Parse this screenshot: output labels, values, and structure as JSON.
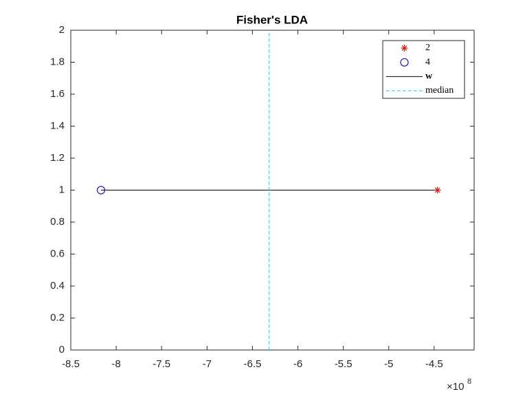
{
  "chart_data": {
    "type": "scatter",
    "title": "Fisher's LDA",
    "xlim": [
      -8.5,
      -4.06
    ],
    "ylim": [
      0,
      2
    ],
    "xticks": [
      -8.5,
      -8,
      -7.5,
      -7,
      -6.5,
      -6,
      -5.5,
      -5,
      -4.5
    ],
    "yticks": [
      0,
      0.2,
      0.4,
      0.6,
      0.8,
      1,
      1.2,
      1.4,
      1.6,
      1.8,
      2
    ],
    "x_multiplier": "×10",
    "x_multiplier_exponent": "8",
    "legend_position": "northeast",
    "series": [
      {
        "name": "2",
        "color": "#d02020",
        "marker": "asterisk",
        "x": [
          -4.464
        ],
        "values": [
          1
        ]
      },
      {
        "name": "4",
        "color": "#1c1ca8",
        "marker": "circle",
        "x": [
          -8.167
        ],
        "values": [
          1
        ]
      },
      {
        "name": "w",
        "color": "#000000",
        "linestyle": "solid",
        "bold_label": true,
        "x": [
          -8.167,
          -4.464
        ],
        "values": [
          1,
          1
        ]
      },
      {
        "name": "median",
        "color": "#00d8d8",
        "linestyle": "dashed",
        "x": [
          -6.316,
          -6.316
        ],
        "values": [
          0,
          2
        ]
      }
    ]
  }
}
